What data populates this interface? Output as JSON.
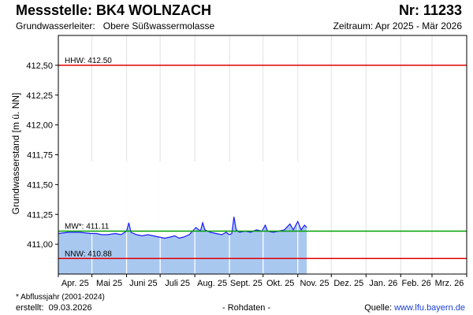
{
  "header": {
    "title": "Messstelle: BK4 WOLNZACH",
    "station_nr": "Nr: 11233",
    "aquifer_label": "Grundwasserleiter:",
    "aquifer_value": "Obere Süßwassermolasse",
    "period": "Zeitraum: Apr 2025 - Mär 2026"
  },
  "footer": {
    "footnote": "* Abflussjahr (2001-2024)",
    "created_label": "erstellt:",
    "created_date": "09.03.2026",
    "rawdata": "- Rohdaten -",
    "source_label": "Quelle:",
    "source_url": "www.lfu.bayern.de"
  },
  "chart_data": {
    "type": "area",
    "ylabel": "Grundwasserstand [m ü. NN]",
    "ylim": [
      410.75,
      412.75
    ],
    "yticks": [
      "412,50",
      "412,25",
      "412,00",
      "411,75",
      "411,50",
      "411,25",
      "411,00"
    ],
    "ytick_values": [
      412.5,
      412.25,
      412.0,
      411.75,
      411.5,
      411.25,
      411.0
    ],
    "months": [
      "Apr. 25",
      "Mai 25",
      "Juni 25",
      "Juli 25",
      "Aug. 25",
      "Sept. 25",
      "Okt. 25",
      "Nov. 25",
      "Dez. 25",
      "Jan. 26",
      "Feb. 26",
      "Mrz. 26"
    ],
    "month_days": [
      30,
      31,
      30,
      31,
      31,
      30,
      31,
      30,
      31,
      31,
      28,
      31
    ],
    "reference_lines": [
      {
        "label": "HHW: 412.50",
        "value": 412.5,
        "color": "#e00000"
      },
      {
        "label": "MW*: 411.11",
        "value": 411.11,
        "color": "#00a000"
      },
      {
        "label": "NNW: 410.88",
        "value": 410.88,
        "color": "#e00000"
      }
    ],
    "series": [
      {
        "line_color": "#1a1aff",
        "fill_color": "#a9c8f0",
        "points": [
          [
            "2025-04-01",
            411.09
          ],
          [
            "2025-04-10",
            411.1
          ],
          [
            "2025-04-20",
            411.1
          ],
          [
            "2025-04-30",
            411.09
          ],
          [
            "2025-05-05",
            411.09
          ],
          [
            "2025-05-10",
            411.08
          ],
          [
            "2025-05-15",
            411.08
          ],
          [
            "2025-05-22",
            411.09
          ],
          [
            "2025-05-27",
            411.08
          ],
          [
            "2025-06-01",
            411.11
          ],
          [
            "2025-06-03",
            411.18
          ],
          [
            "2025-06-05",
            411.1
          ],
          [
            "2025-06-10",
            411.08
          ],
          [
            "2025-06-15",
            411.07
          ],
          [
            "2025-06-20",
            411.08
          ],
          [
            "2025-06-25",
            411.07
          ],
          [
            "2025-06-30",
            411.06
          ],
          [
            "2025-07-05",
            411.05
          ],
          [
            "2025-07-10",
            411.06
          ],
          [
            "2025-07-14",
            411.07
          ],
          [
            "2025-07-18",
            411.05
          ],
          [
            "2025-07-22",
            411.06
          ],
          [
            "2025-07-27",
            411.08
          ],
          [
            "2025-08-02",
            411.14
          ],
          [
            "2025-08-06",
            411.11
          ],
          [
            "2025-08-08",
            411.18
          ],
          [
            "2025-08-10",
            411.12
          ],
          [
            "2025-08-15",
            411.1
          ],
          [
            "2025-08-20",
            411.09
          ],
          [
            "2025-08-25",
            411.08
          ],
          [
            "2025-08-29",
            411.1
          ],
          [
            "2025-09-01",
            411.08
          ],
          [
            "2025-09-03",
            411.09
          ],
          [
            "2025-09-05",
            411.23
          ],
          [
            "2025-09-07",
            411.12
          ],
          [
            "2025-09-10",
            411.1
          ],
          [
            "2025-09-15",
            411.11
          ],
          [
            "2025-09-20",
            411.1
          ],
          [
            "2025-09-25",
            411.12
          ],
          [
            "2025-09-30",
            411.11
          ],
          [
            "2025-10-03",
            411.16
          ],
          [
            "2025-10-05",
            411.11
          ],
          [
            "2025-10-10",
            411.1
          ],
          [
            "2025-10-15",
            411.11
          ],
          [
            "2025-10-20",
            411.12
          ],
          [
            "2025-10-25",
            411.17
          ],
          [
            "2025-10-28",
            411.12
          ],
          [
            "2025-11-01",
            411.19
          ],
          [
            "2025-11-04",
            411.12
          ],
          [
            "2025-11-07",
            411.16
          ],
          [
            "2025-11-09",
            411.14
          ]
        ]
      }
    ],
    "grid": true
  }
}
